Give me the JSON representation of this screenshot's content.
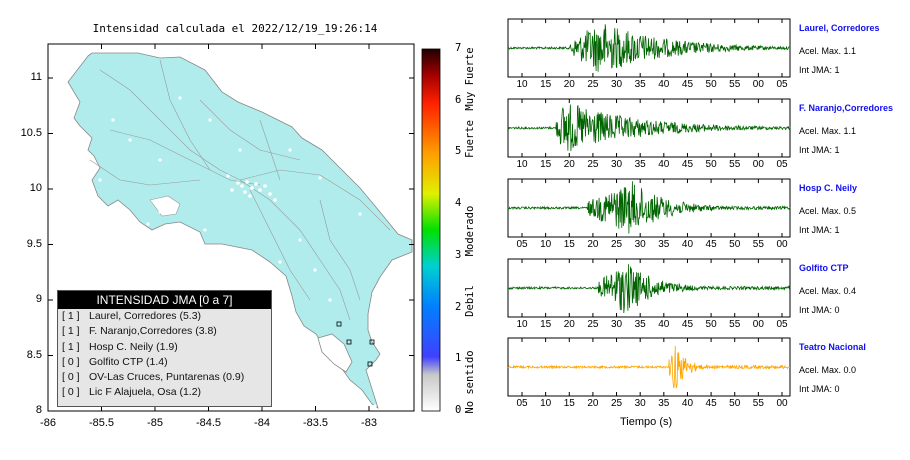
{
  "map": {
    "title": "Intensidad calculada el 2022/12/19_19:26:14",
    "x_ticks": [
      "-86",
      "-85.5",
      "-85",
      "-84.5",
      "-84",
      "-83.5",
      "-83"
    ],
    "y_ticks": [
      "11",
      "10.5",
      "10",
      "9.5",
      "9",
      "8.5",
      "8"
    ],
    "land_color": "#b0ecec",
    "legend": {
      "title": "INTENSIDAD JMA [0 a 7]",
      "rows": [
        {
          "level": "[ 1 ]",
          "text": "Laurel, Corredores (5.3)"
        },
        {
          "level": "[ 1 ]",
          "text": "F. Naranjo,Corredores (3.8)"
        },
        {
          "level": "[ 1 ]",
          "text": "Hosp C. Neily (1.9)"
        },
        {
          "level": "[ 0 ]",
          "text": "Golfito CTP (1.4)"
        },
        {
          "level": "[ 0 ]",
          "text": "OV-Las Cruces, Puntarenas (0.9)"
        },
        {
          "level": "[ 0 ]",
          "text": "Lic F Alajuela, Osa (1.2)"
        }
      ]
    }
  },
  "colorbar": {
    "ticks": [
      "7",
      "6",
      "5",
      "4",
      "3",
      "2",
      "1",
      "0"
    ],
    "labels": [
      "Muy Fuerte",
      "Fuerte",
      "Moderado",
      "Debil",
      "No sentido"
    ]
  },
  "chart_data": {
    "type": "line",
    "xlabel": "Tiempo (s)",
    "traces": [
      {
        "station": "Laurel, Corredores",
        "acel": "Acel. Max. 1.1",
        "int": "Int JMA: 1",
        "color": "#006400",
        "ticks": [
          "10",
          "15",
          "20",
          "25",
          "30",
          "35",
          "40",
          "45",
          "50",
          "55",
          "00",
          "05"
        ],
        "onset_frac": 0.22,
        "peak_frac": 0.33,
        "decay": 0.22
      },
      {
        "station": "F. Naranjo,Corredores",
        "acel": "Acel. Max. 1.1",
        "int": "Int JMA: 1",
        "color": "#006400",
        "ticks": [
          "10",
          "15",
          "20",
          "25",
          "30",
          "35",
          "40",
          "45",
          "50",
          "55",
          "00",
          "05"
        ],
        "onset_frac": 0.17,
        "peak_frac": 0.2,
        "decay": 0.25
      },
      {
        "station": "Hosp C. Neily",
        "acel": "Acel. Max. 0.5",
        "int": "Int JMA: 1",
        "color": "#006400",
        "ticks": [
          "05",
          "10",
          "15",
          "20",
          "25",
          "30",
          "35",
          "40",
          "45",
          "50",
          "55",
          "00"
        ],
        "onset_frac": 0.28,
        "peak_frac": 0.44,
        "decay": 0.12
      },
      {
        "station": "Golfito CTP",
        "acel": "Acel. Max. 0.4",
        "int": "Int JMA: 0",
        "color": "#006400",
        "ticks": [
          "10",
          "15",
          "20",
          "25",
          "30",
          "35",
          "40",
          "45",
          "50",
          "55",
          "00",
          "05"
        ],
        "onset_frac": 0.32,
        "peak_frac": 0.42,
        "decay": 0.1
      },
      {
        "station": "Teatro Nacional",
        "acel": "Acel. Max. 0.0",
        "int": "Int JMA: 0",
        "color": "#ffa500",
        "ticks": [
          "05",
          "10",
          "15",
          "20",
          "25",
          "30",
          "35",
          "40",
          "45",
          "50",
          "55",
          "00"
        ],
        "onset_frac": 0.57,
        "peak_frac": 0.59,
        "decay": 0.04
      }
    ]
  }
}
